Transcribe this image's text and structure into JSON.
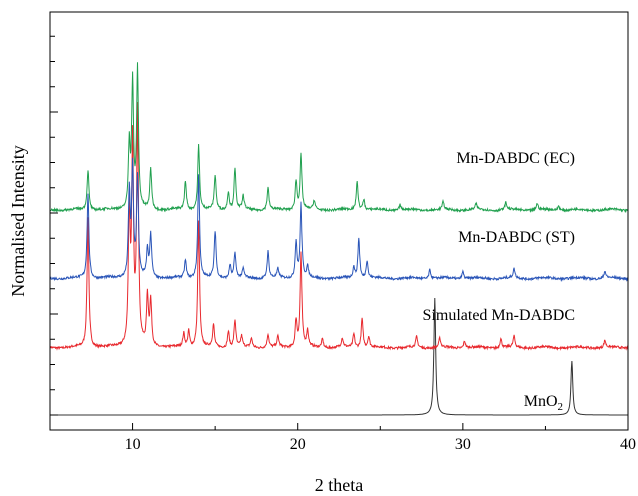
{
  "chart_data": {
    "type": "line",
    "title": "",
    "xlabel": "2 theta",
    "ylabel": "Normalised Intensity",
    "xlim": [
      5,
      40
    ],
    "ylim": [
      0,
      4.2
    ],
    "x_ticks": [
      10,
      20,
      30,
      40
    ],
    "y_ticks": [],
    "grid": false,
    "legend": "none",
    "series": [
      {
        "name": "MnO2",
        "label_main": "MnO",
        "label_sub": "2",
        "color": "#333333",
        "baseline": 0.0,
        "peaks": [
          [
            28.3,
            1.3
          ],
          [
            36.6,
            0.6
          ]
        ]
      },
      {
        "name": "Simulated Mn-DABDC",
        "label_main": "Simulated Mn-DABDC",
        "label_sub": "",
        "color": "#e8292e",
        "baseline": 0.75,
        "peaks": [
          [
            7.3,
            1.45
          ],
          [
            9.8,
            1.5
          ],
          [
            10.0,
            2.2
          ],
          [
            10.3,
            2.6
          ],
          [
            10.9,
            0.55
          ],
          [
            11.1,
            0.5
          ],
          [
            13.1,
            0.15
          ],
          [
            13.4,
            0.18
          ],
          [
            14.0,
            1.4
          ],
          [
            14.9,
            0.25
          ],
          [
            15.8,
            0.18
          ],
          [
            16.2,
            0.3
          ],
          [
            16.6,
            0.12
          ],
          [
            17.2,
            0.1
          ],
          [
            18.2,
            0.15
          ],
          [
            18.8,
            0.12
          ],
          [
            19.9,
            0.3
          ],
          [
            20.2,
            1.05
          ],
          [
            20.6,
            0.18
          ],
          [
            21.5,
            0.1
          ],
          [
            22.7,
            0.1
          ],
          [
            23.4,
            0.15
          ],
          [
            23.9,
            0.33
          ],
          [
            24.3,
            0.12
          ],
          [
            27.2,
            0.12
          ],
          [
            28.6,
            0.1
          ],
          [
            30.1,
            0.08
          ],
          [
            32.3,
            0.1
          ],
          [
            33.1,
            0.12
          ],
          [
            38.6,
            0.08
          ]
        ]
      },
      {
        "name": "Mn-DABDC (ST)",
        "label_main": "Mn-DABDC (ST)",
        "label_sub": "",
        "color": "#2a55b8",
        "baseline": 1.52,
        "peaks": [
          [
            7.3,
            0.95
          ],
          [
            9.8,
            0.95
          ],
          [
            10.0,
            1.2
          ],
          [
            10.3,
            1.1
          ],
          [
            10.9,
            0.3
          ],
          [
            11.1,
            0.48
          ],
          [
            13.2,
            0.2
          ],
          [
            14.0,
            1.15
          ],
          [
            15.0,
            0.52
          ],
          [
            15.9,
            0.15
          ],
          [
            16.2,
            0.28
          ],
          [
            16.7,
            0.1
          ],
          [
            18.2,
            0.3
          ],
          [
            18.8,
            0.1
          ],
          [
            19.9,
            0.4
          ],
          [
            20.2,
            0.82
          ],
          [
            20.6,
            0.12
          ],
          [
            23.4,
            0.12
          ],
          [
            23.7,
            0.45
          ],
          [
            24.2,
            0.2
          ],
          [
            28.0,
            0.1
          ],
          [
            30.0,
            0.08
          ],
          [
            33.1,
            0.1
          ],
          [
            38.6,
            0.08
          ]
        ]
      },
      {
        "name": "Mn-DABDC (EC)",
        "label_main": "Mn-DABDC (EC)",
        "label_sub": "",
        "color": "#21a04f",
        "baseline": 2.28,
        "peaks": [
          [
            7.3,
            0.45
          ],
          [
            9.8,
            0.72
          ],
          [
            10.0,
            1.4
          ],
          [
            10.3,
            1.55
          ],
          [
            11.1,
            0.45
          ],
          [
            13.2,
            0.32
          ],
          [
            14.0,
            0.72
          ],
          [
            15.0,
            0.38
          ],
          [
            15.8,
            0.2
          ],
          [
            16.2,
            0.45
          ],
          [
            16.7,
            0.15
          ],
          [
            18.2,
            0.25
          ],
          [
            19.9,
            0.32
          ],
          [
            20.2,
            0.62
          ],
          [
            21.0,
            0.1
          ],
          [
            23.6,
            0.32
          ],
          [
            24.0,
            0.12
          ],
          [
            26.2,
            0.06
          ],
          [
            28.8,
            0.08
          ],
          [
            30.8,
            0.06
          ],
          [
            32.6,
            0.08
          ],
          [
            34.5,
            0.07
          ],
          [
            35.8,
            0.05
          ]
        ]
      }
    ]
  }
}
